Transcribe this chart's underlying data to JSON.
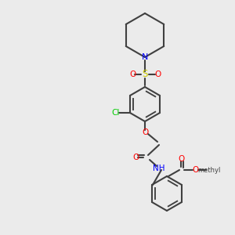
{
  "bg_color": "#ebebeb",
  "bond_color": "#404040",
  "bond_lw": 1.5,
  "atom_colors": {
    "N": "#0000ff",
    "O": "#ff0000",
    "S": "#cccc00",
    "Cl": "#00cc00",
    "C": "#404040"
  },
  "font_size": 7.5
}
